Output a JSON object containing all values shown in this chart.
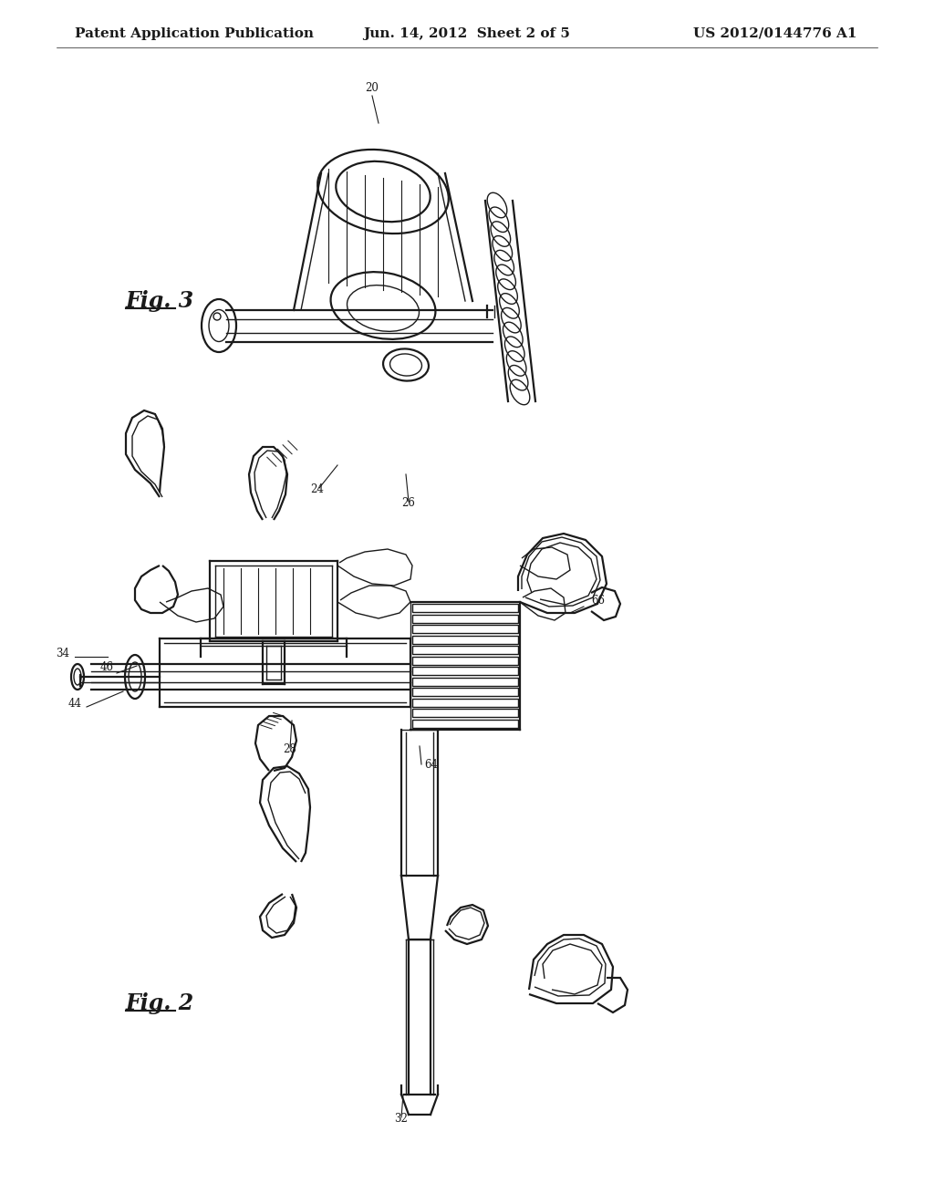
{
  "background_color": "#ffffff",
  "header_left": "Patent Application Publication",
  "header_center": "Jun. 14, 2012  Sheet 2 of 5",
  "header_right": "US 2012/0144776 A1",
  "fig3_label": "Fig. 3",
  "fig2_label": "Fig. 2",
  "line_color": "#1a1a1a",
  "text_color": "#1a1a1a",
  "ref_fontsize": 8.5,
  "label_fontsize": 17,
  "header_fontsize": 11
}
